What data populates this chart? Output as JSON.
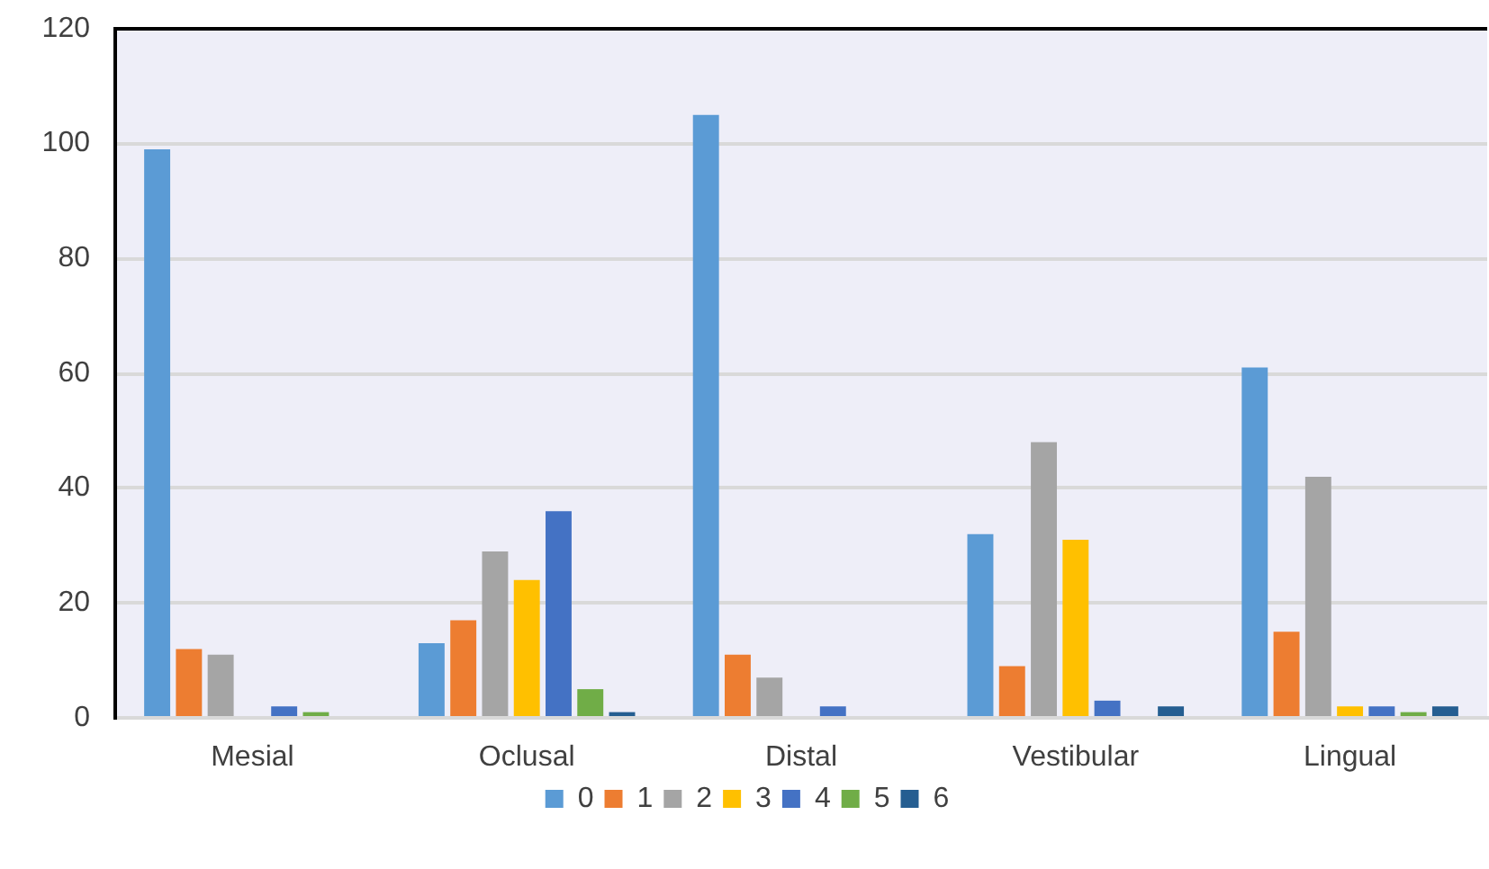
{
  "chart_data": {
    "type": "bar",
    "categories": [
      "Mesial",
      "Oclusal",
      "Distal",
      "Vestibular",
      "Lingual"
    ],
    "series": [
      {
        "name": "0",
        "color": "#5b9bd5",
        "values": [
          99,
          13,
          105,
          32,
          61
        ]
      },
      {
        "name": "1",
        "color": "#ed7d31",
        "values": [
          12,
          17,
          11,
          9,
          15
        ]
      },
      {
        "name": "2",
        "color": "#a5a5a5",
        "values": [
          11,
          29,
          7,
          48,
          42
        ]
      },
      {
        "name": "3",
        "color": "#ffc000",
        "values": [
          0,
          24,
          0,
          31,
          2
        ]
      },
      {
        "name": "4",
        "color": "#4472c4",
        "values": [
          2,
          36,
          2,
          3,
          2
        ]
      },
      {
        "name": "5",
        "color": "#70ad47",
        "values": [
          1,
          5,
          0,
          0,
          1
        ]
      },
      {
        "name": "6",
        "color": "#255e91",
        "values": [
          0,
          1,
          0,
          2,
          2
        ]
      }
    ],
    "ylim": [
      0,
      120
    ],
    "yticks": [
      0,
      20,
      40,
      60,
      80,
      100,
      120
    ],
    "grid": "y",
    "legend": "bottom"
  }
}
